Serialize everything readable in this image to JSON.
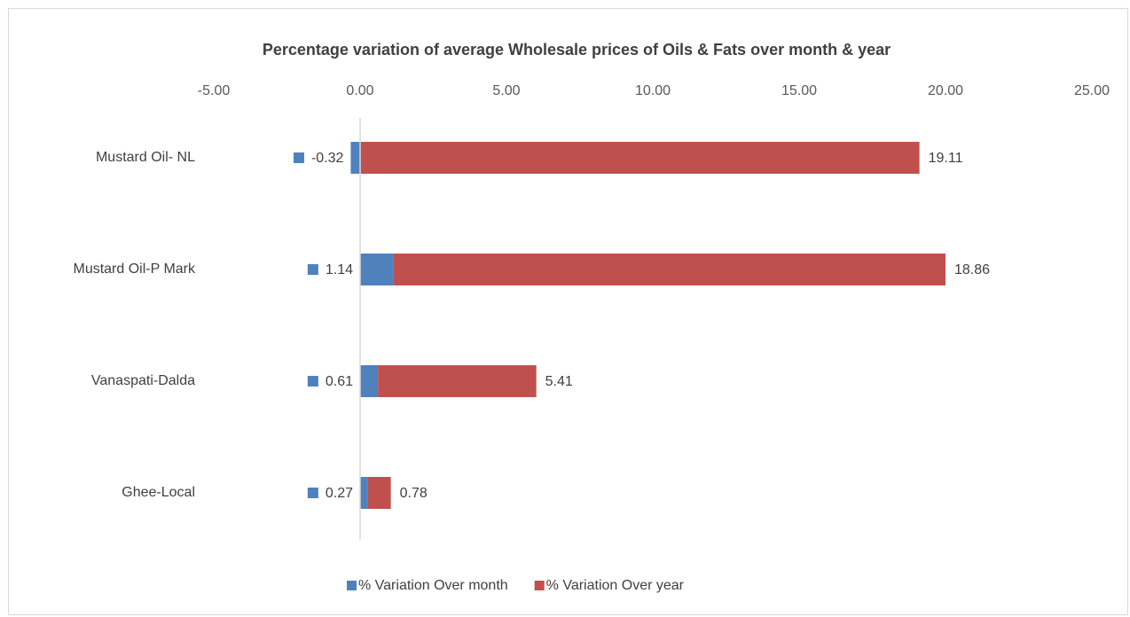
{
  "chart_data": {
    "type": "stacked_barh",
    "title": "Percentage variation of average Wholesale prices of Oils & Fats over month & year",
    "categories": [
      "Mustard Oil- NL",
      "Mustard Oil-P Mark",
      "Vanaspati-Dalda",
      "Ghee-Local"
    ],
    "series": [
      {
        "name": "% Variation Over month",
        "color": "#4f81bd",
        "values": [
          -0.32,
          1.14,
          0.61,
          0.27
        ]
      },
      {
        "name": "% Variation Over year",
        "color": "#c0504d",
        "values": [
          19.11,
          18.86,
          5.41,
          0.78
        ]
      }
    ],
    "xlim": [
      -5,
      25
    ],
    "xticks": [
      {
        "value": -5,
        "label": "-5.00"
      },
      {
        "value": 0,
        "label": "0.00"
      },
      {
        "value": 5,
        "label": "5.00"
      },
      {
        "value": 10,
        "label": "10.00"
      },
      {
        "value": 15,
        "label": "15.00"
      },
      {
        "value": 20,
        "label": "20.00"
      },
      {
        "value": 25,
        "label": "25.00"
      }
    ],
    "legend": "bottom"
  }
}
